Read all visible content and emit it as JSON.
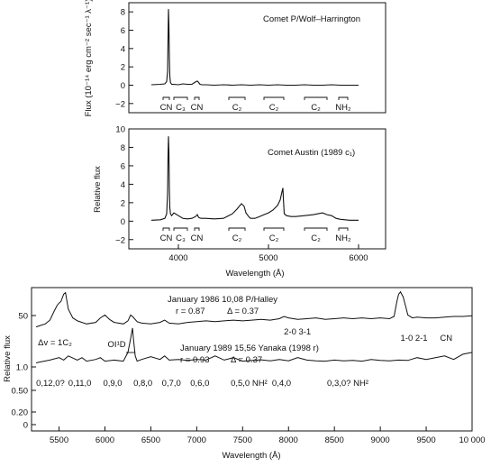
{
  "chart_data": [
    {
      "type": "line",
      "title": "",
      "xlabel": "",
      "ylabel": "Flux (10⁻¹⁴ erg cm⁻² sec⁻¹ λ⁻¹)",
      "xlim": [
        3450,
        6300
      ],
      "ylim": [
        -3,
        9
      ],
      "yticks": [
        "−2",
        "0",
        "2",
        "4",
        "6",
        "8"
      ],
      "ytick_values": [
        -2,
        0,
        2,
        4,
        6,
        8
      ],
      "grid": false,
      "series": [
        {
          "name": "Comet P/Wolf–Harrington",
          "x": [
            3700,
            3800,
            3850,
            3870,
            3880,
            3885,
            3890,
            3895,
            3900,
            3905,
            3912,
            3925,
            3950,
            4000,
            4050,
            4100,
            4150,
            4190,
            4210,
            4225,
            4240,
            4260,
            4300,
            4400,
            4500,
            4600,
            4700,
            4800,
            4900,
            5000,
            5100,
            5200,
            5300,
            5400,
            5500,
            5600,
            5700,
            5800,
            5900,
            6000
          ],
          "y": [
            0.05,
            0.1,
            0.15,
            0.4,
            1.5,
            5.0,
            8.3,
            6.5,
            3.0,
            1.0,
            0.3,
            0.1,
            0.1,
            0.05,
            0.15,
            0.1,
            0.1,
            0.35,
            0.45,
            0.3,
            0.1,
            0.05,
            0.05,
            0.0,
            0.05,
            0.0,
            0.05,
            0.0,
            0.05,
            0.0,
            0.05,
            0.0,
            0.0,
            0.05,
            0.0,
            0.0,
            0.05,
            0.0,
            0.0,
            0.0
          ]
        }
      ],
      "annotations": [
        "CN",
        "C₃",
        "CN",
        "C₂",
        "C₂",
        "C₂",
        "NH₂"
      ],
      "legend": "Comet P/Wolf–Harrington"
    },
    {
      "type": "line",
      "title": "",
      "xlabel": "Wavelength (Å)",
      "ylabel": "Relative flux",
      "xlim": [
        3450,
        6300
      ],
      "ylim": [
        -3,
        10
      ],
      "xticks": [
        "4000",
        "5000",
        "6000"
      ],
      "xtick_values": [
        4000,
        5000,
        6000
      ],
      "yticks": [
        "−2",
        "0",
        "2",
        "4",
        "6",
        "8",
        "10"
      ],
      "ytick_values": [
        -2,
        0,
        2,
        4,
        6,
        8,
        10
      ],
      "grid": false,
      "series": [
        {
          "name": "Comet Austin (1989 c₁)",
          "x": [
            3700,
            3800,
            3850,
            3870,
            3880,
            3885,
            3890,
            3895,
            3900,
            3905,
            3912,
            3925,
            3950,
            4000,
            4050,
            4100,
            4150,
            4190,
            4210,
            4225,
            4250,
            4300,
            4400,
            4500,
            4600,
            4650,
            4700,
            4730,
            4750,
            4780,
            4800,
            4850,
            4900,
            4950,
            5000,
            5050,
            5100,
            5130,
            5150,
            5160,
            5165,
            5175,
            5200,
            5250,
            5300,
            5400,
            5500,
            5600,
            5650,
            5700,
            5750,
            5800,
            5850,
            5900,
            5950,
            6000
          ],
          "y": [
            0.1,
            0.15,
            0.3,
            0.8,
            3.0,
            7.0,
            9.2,
            7.5,
            3.5,
            1.5,
            0.8,
            0.6,
            0.9,
            0.6,
            0.3,
            0.25,
            0.3,
            0.5,
            0.7,
            0.4,
            0.3,
            0.3,
            0.25,
            0.3,
            0.8,
            1.3,
            1.9,
            1.6,
            0.9,
            0.5,
            0.3,
            0.3,
            0.5,
            0.7,
            0.9,
            1.2,
            1.7,
            2.3,
            3.2,
            3.6,
            2.5,
            0.8,
            0.6,
            0.5,
            0.5,
            0.6,
            0.7,
            0.9,
            0.7,
            0.6,
            0.3,
            0.2,
            0.15,
            0.1,
            0.1,
            0.1
          ]
        }
      ],
      "annotations": [
        "CN",
        "C₃",
        "CN",
        "C₂",
        "C₂",
        "C₂",
        "NH₂"
      ],
      "legend": "Comet Austin (1989 c₁)"
    },
    {
      "type": "line",
      "title": "",
      "xlabel": "Wavelength (Å)",
      "ylabel": "Relative flux",
      "xlim": [
        5200,
        10000
      ],
      "xticks": [
        "5500",
        "6000",
        "6500",
        "7000",
        "7500",
        "8000",
        "8500",
        "9000",
        "9500",
        "10 000"
      ],
      "xtick_values": [
        5500,
        6000,
        6500,
        7000,
        7500,
        8000,
        8500,
        9000,
        9500,
        10000
      ],
      "yticks_upper": [
        "50"
      ],
      "yticks_lower": [
        "1.0",
        "0.50",
        "0.20",
        "0"
      ],
      "grid": false,
      "series": [
        {
          "name": "January 1986 10,08 P/Halley",
          "x": [
            5250,
            5300,
            5350,
            5400,
            5450,
            5480,
            5500,
            5520,
            5550,
            5570,
            5600,
            5650,
            5700,
            5800,
            5900,
            5950,
            6000,
            6050,
            6100,
            6200,
            6250,
            6280,
            6300,
            6350,
            6400,
            6500,
            6600,
            6650,
            6700,
            6800,
            6900,
            7000,
            7100,
            7200,
            7300,
            7400,
            7500,
            7600,
            7700,
            7800,
            7900,
            7950,
            8000,
            8100,
            8200,
            8300,
            8400,
            8500,
            8600,
            8700,
            8800,
            8900,
            9000,
            9100,
            9150,
            9180,
            9200,
            9220,
            9250,
            9280,
            9300,
            9350,
            9400,
            9500,
            9600,
            9700,
            9800,
            9900,
            10000
          ],
          "y": [
            26,
            28,
            30,
            35,
            48,
            55,
            58,
            60,
            70,
            72,
            50,
            38,
            34,
            30,
            32,
            38,
            42,
            36,
            32,
            30,
            34,
            42,
            40,
            33,
            31,
            30,
            32,
            35,
            31,
            30,
            32,
            33,
            34,
            33,
            34,
            35,
            34,
            35,
            36,
            35,
            37,
            40,
            38,
            36,
            37,
            38,
            36,
            37,
            38,
            37,
            38,
            37,
            38,
            37,
            40,
            60,
            70,
            73,
            66,
            52,
            42,
            38,
            39,
            38,
            38,
            39,
            40,
            40,
            41
          ]
        },
        {
          "name": "January 1989 15,56 Yanaka (1998 r)",
          "x": [
            5250,
            5300,
            5400,
            5500,
            5550,
            5600,
            5700,
            5750,
            5800,
            5900,
            5950,
            6000,
            6100,
            6200,
            6250,
            6280,
            6300,
            6310,
            6330,
            6350,
            6400,
            6500,
            6600,
            6650,
            6700,
            6800,
            6900,
            7000,
            7100,
            7200,
            7300,
            7400,
            7500,
            7600,
            7700,
            7800,
            7900,
            8000,
            8100,
            8200,
            8300,
            8400,
            8500,
            8600,
            8700,
            8800,
            8900,
            9000,
            9100,
            9200,
            9300,
            9400,
            9500,
            9600,
            9700,
            9800,
            9900,
            10000
          ],
          "y": [
            0.9,
            0.93,
            0.98,
            1.05,
            0.98,
            1.1,
            0.98,
            1.05,
            0.95,
            1.0,
            1.05,
            0.95,
            0.98,
            0.95,
            1.2,
            1.6,
            1.9,
            1.6,
            1.1,
            0.95,
            1.0,
            1.08,
            1.0,
            1.1,
            0.98,
            1.0,
            0.97,
            1.0,
            0.98,
            1.1,
            0.98,
            1.05,
            0.95,
            0.97,
            0.99,
            0.96,
            1.0,
            0.96,
            1.05,
            0.98,
            0.96,
            0.95,
            0.98,
            0.96,
            0.97,
            0.95,
            1.0,
            0.97,
            0.96,
            0.98,
            0.97,
            1.05,
            1.0,
            1.05,
            1.1,
            1.0,
            1.15,
            1.2
          ]
        }
      ],
      "halley_labels": {
        "date": "January 1986 10,08 P/Halley",
        "r": "r = 0.87",
        "delta": "Δ = 0.37"
      },
      "yanaka_labels": {
        "date": "January 1989 15,56 Yanaka (1998 r)",
        "r": "r = 0.93",
        "delta": "Δ = 0.37"
      },
      "annotations_top": [
        "Δv = 1C₂",
        "OI¹D",
        "2-0",
        "3-1",
        "1-0",
        "2-1",
        "CN"
      ],
      "annotations_bottom": [
        "0,12,0?",
        "0,11,0",
        "0,9,0",
        "0,8,0",
        "0,7,0",
        "0,6,0",
        "0,5,0 NH²",
        "0,4,0",
        "0,3,0? NH²"
      ]
    }
  ]
}
